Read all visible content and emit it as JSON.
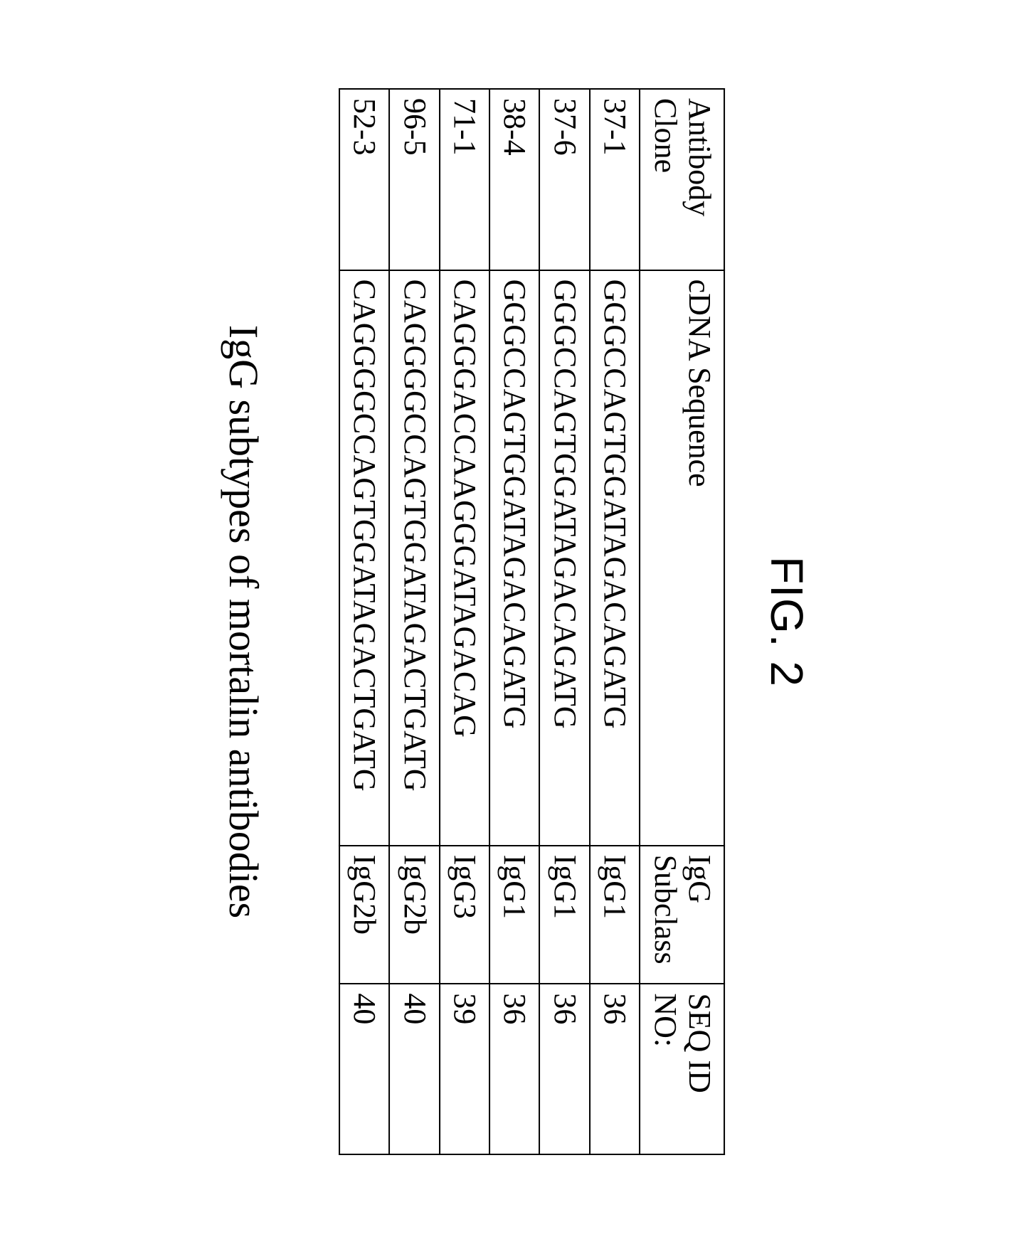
{
  "figure": {
    "label": "FIG. 2",
    "caption": "IgG subtypes of mortalin antibodies"
  },
  "table": {
    "columns": [
      "Antibody Clone",
      "cDNA Sequence",
      "IgG Subclass",
      "SEQ ID NO:"
    ],
    "rows": [
      {
        "clone": "37-1",
        "sequence": "GGGCCAGTGGATAGACAGATG",
        "subclass": "IgG1",
        "seqid": "36"
      },
      {
        "clone": "37-6",
        "sequence": "GGGCCAGTGGATAGACAGATG",
        "subclass": "IgG1",
        "seqid": "36"
      },
      {
        "clone": "38-4",
        "sequence": "GGGCCAGTGGATAGACAGATG",
        "subclass": "IgG1",
        "seqid": "36"
      },
      {
        "clone": "71-1",
        "sequence": "CAGGGACCAAGGGATAGACAG",
        "subclass": "IgG3",
        "seqid": "39"
      },
      {
        "clone": "96-5",
        "sequence": "CAGGGGCCAGTGGATAGACTGATG",
        "subclass": "IgG2b",
        "seqid": "40"
      },
      {
        "clone": "52-3",
        "sequence": "CAGGGGCCAGTGGATAGACTGATG",
        "subclass": "IgG2b",
        "seqid": "40"
      }
    ],
    "border_color": "#000000",
    "background_color": "#ffffff",
    "header_fontsize": 44,
    "cell_fontsize": 44
  }
}
